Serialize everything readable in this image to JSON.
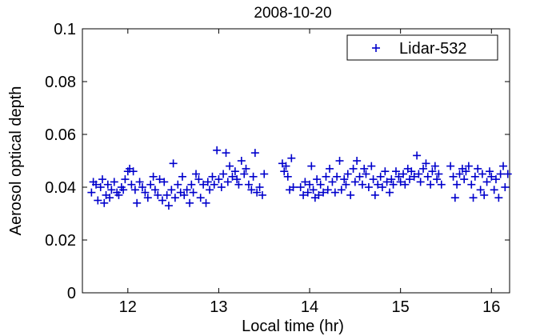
{
  "chart_data": {
    "type": "scatter",
    "title": "2008-10-20",
    "xlabel": "Local time (hr)",
    "ylabel": "Aerosol optical depth",
    "xlim": [
      11.5,
      16.2
    ],
    "ylim": [
      0,
      0.1
    ],
    "xticks": [
      12,
      13,
      14,
      15,
      16
    ],
    "xtick_labels": [
      "12",
      "13",
      "14",
      "15",
      "16"
    ],
    "yticks": [
      0,
      0.02,
      0.04,
      0.06,
      0.08,
      0.1
    ],
    "ytick_labels": [
      "0",
      "0.02",
      "0.04",
      "0.06",
      "0.08",
      "0.1"
    ],
    "grid": false,
    "legend_position": "top-right",
    "marker": "+",
    "series": [
      {
        "name": "Lidar-532",
        "color": "#0000cc",
        "points": [
          [
            11.6,
            0.038
          ],
          [
            11.62,
            0.042
          ],
          [
            11.65,
            0.041
          ],
          [
            11.67,
            0.035
          ],
          [
            11.7,
            0.04
          ],
          [
            11.72,
            0.043
          ],
          [
            11.74,
            0.034
          ],
          [
            11.76,
            0.037
          ],
          [
            11.78,
            0.041
          ],
          [
            11.8,
            0.036
          ],
          [
            11.82,
            0.039
          ],
          [
            11.85,
            0.042
          ],
          [
            11.88,
            0.038
          ],
          [
            11.9,
            0.037
          ],
          [
            11.93,
            0.04
          ],
          [
            11.95,
            0.039
          ],
          [
            11.97,
            0.043
          ],
          [
            12.0,
            0.046
          ],
          [
            12.02,
            0.047
          ],
          [
            12.04,
            0.041
          ],
          [
            12.06,
            0.046
          ],
          [
            12.08,
            0.039
          ],
          [
            12.1,
            0.034
          ],
          [
            12.13,
            0.042
          ],
          [
            12.16,
            0.04
          ],
          [
            12.19,
            0.038
          ],
          [
            12.22,
            0.036
          ],
          [
            12.25,
            0.041
          ],
          [
            12.28,
            0.044
          ],
          [
            12.3,
            0.039
          ],
          [
            12.33,
            0.037
          ],
          [
            12.35,
            0.043
          ],
          [
            12.38,
            0.035
          ],
          [
            12.4,
            0.042
          ],
          [
            12.43,
            0.037
          ],
          [
            12.45,
            0.033
          ],
          [
            12.48,
            0.039
          ],
          [
            12.5,
            0.049
          ],
          [
            12.52,
            0.036
          ],
          [
            12.55,
            0.041
          ],
          [
            12.58,
            0.038
          ],
          [
            12.6,
            0.044
          ],
          [
            12.62,
            0.037
          ],
          [
            12.65,
            0.039
          ],
          [
            12.68,
            0.034
          ],
          [
            12.7,
            0.041
          ],
          [
            12.72,
            0.038
          ],
          [
            12.75,
            0.045
          ],
          [
            12.78,
            0.043
          ],
          [
            12.8,
            0.036
          ],
          [
            12.83,
            0.041
          ],
          [
            12.86,
            0.034
          ],
          [
            12.88,
            0.042
          ],
          [
            12.9,
            0.039
          ],
          [
            12.93,
            0.044
          ],
          [
            12.95,
            0.041
          ],
          [
            12.98,
            0.054
          ],
          [
            13.0,
            0.043
          ],
          [
            13.03,
            0.04
          ],
          [
            13.05,
            0.045
          ],
          [
            13.08,
            0.053
          ],
          [
            13.1,
            0.042
          ],
          [
            13.12,
            0.048
          ],
          [
            13.15,
            0.044
          ],
          [
            13.18,
            0.046
          ],
          [
            13.2,
            0.043
          ],
          [
            13.22,
            0.041
          ],
          [
            13.25,
            0.05
          ],
          [
            13.28,
            0.045
          ],
          [
            13.3,
            0.047
          ],
          [
            13.33,
            0.041
          ],
          [
            13.36,
            0.039
          ],
          [
            13.38,
            0.044
          ],
          [
            13.4,
            0.053
          ],
          [
            13.42,
            0.038
          ],
          [
            13.45,
            0.04
          ],
          [
            13.48,
            0.037
          ],
          [
            13.5,
            0.045
          ],
          [
            13.7,
            0.049
          ],
          [
            13.72,
            0.046
          ],
          [
            13.74,
            0.048
          ],
          [
            13.76,
            0.044
          ],
          [
            13.78,
            0.039
          ],
          [
            13.8,
            0.051
          ],
          [
            13.82,
            0.04
          ],
          [
            13.9,
            0.04
          ],
          [
            13.93,
            0.037
          ],
          [
            13.95,
            0.042
          ],
          [
            13.98,
            0.038
          ],
          [
            14.0,
            0.041
          ],
          [
            14.02,
            0.048
          ],
          [
            14.04,
            0.039
          ],
          [
            14.06,
            0.036
          ],
          [
            14.08,
            0.043
          ],
          [
            14.1,
            0.037
          ],
          [
            14.12,
            0.041
          ],
          [
            14.15,
            0.038
          ],
          [
            14.18,
            0.044
          ],
          [
            14.2,
            0.039
          ],
          [
            14.22,
            0.047
          ],
          [
            14.25,
            0.042
          ],
          [
            14.28,
            0.038
          ],
          [
            14.3,
            0.044
          ],
          [
            14.33,
            0.05
          ],
          [
            14.35,
            0.039
          ],
          [
            14.38,
            0.043
          ],
          [
            14.4,
            0.041
          ],
          [
            14.42,
            0.045
          ],
          [
            14.45,
            0.037
          ],
          [
            14.48,
            0.047
          ],
          [
            14.5,
            0.042
          ],
          [
            14.52,
            0.05
          ],
          [
            14.55,
            0.044
          ],
          [
            14.58,
            0.041
          ],
          [
            14.6,
            0.047
          ],
          [
            14.62,
            0.045
          ],
          [
            14.65,
            0.04
          ],
          [
            14.68,
            0.048
          ],
          [
            14.7,
            0.043
          ],
          [
            14.72,
            0.037
          ],
          [
            14.75,
            0.041
          ],
          [
            14.78,
            0.044
          ],
          [
            14.8,
            0.04
          ],
          [
            14.83,
            0.046
          ],
          [
            14.85,
            0.042
          ],
          [
            14.88,
            0.038
          ],
          [
            14.9,
            0.043
          ],
          [
            14.92,
            0.041
          ],
          [
            14.95,
            0.046
          ],
          [
            14.98,
            0.044
          ],
          [
            15.0,
            0.042
          ],
          [
            15.03,
            0.045
          ],
          [
            15.05,
            0.041
          ],
          [
            15.08,
            0.047
          ],
          [
            15.1,
            0.043
          ],
          [
            15.12,
            0.046
          ],
          [
            15.15,
            0.044
          ],
          [
            15.18,
            0.052
          ],
          [
            15.2,
            0.045
          ],
          [
            15.22,
            0.042
          ],
          [
            15.25,
            0.047
          ],
          [
            15.28,
            0.049
          ],
          [
            15.3,
            0.044
          ],
          [
            15.33,
            0.041
          ],
          [
            15.35,
            0.046
          ],
          [
            15.38,
            0.048
          ],
          [
            15.4,
            0.043
          ],
          [
            15.42,
            0.045
          ],
          [
            15.45,
            0.041
          ],
          [
            15.55,
            0.048
          ],
          [
            15.58,
            0.044
          ],
          [
            15.6,
            0.036
          ],
          [
            15.62,
            0.041
          ],
          [
            15.65,
            0.045
          ],
          [
            15.68,
            0.047
          ],
          [
            15.7,
            0.043
          ],
          [
            15.72,
            0.046
          ],
          [
            15.75,
            0.048
          ],
          [
            15.78,
            0.041
          ],
          [
            15.8,
            0.036
          ],
          [
            15.82,
            0.044
          ],
          [
            15.85,
            0.047
          ],
          [
            15.88,
            0.039
          ],
          [
            15.9,
            0.045
          ],
          [
            15.92,
            0.037
          ],
          [
            15.95,
            0.042
          ],
          [
            15.98,
            0.046
          ],
          [
            16.0,
            0.044
          ],
          [
            16.03,
            0.039
          ],
          [
            16.05,
            0.043
          ],
          [
            16.08,
            0.036
          ],
          [
            16.1,
            0.045
          ],
          [
            16.13,
            0.048
          ],
          [
            16.15,
            0.04
          ],
          [
            16.18,
            0.045
          ]
        ]
      }
    ]
  }
}
